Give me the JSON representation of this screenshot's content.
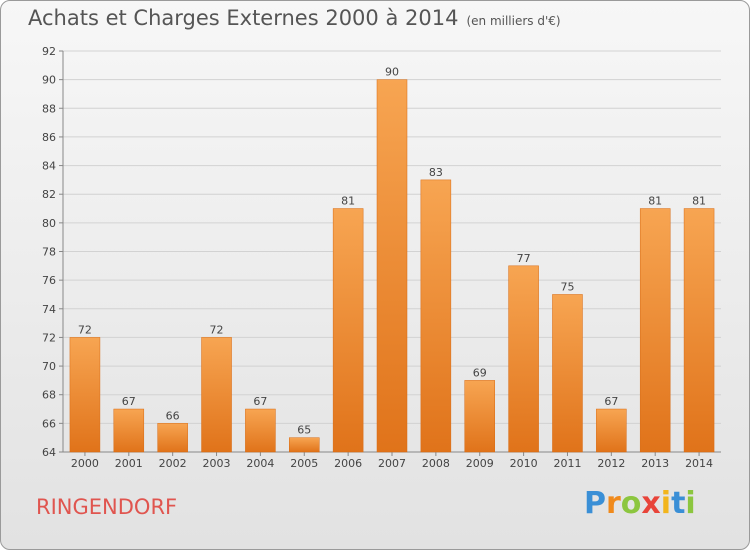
{
  "chart_data": {
    "type": "bar",
    "title": "Achats et Charges Externes 2000 à 2014",
    "subtitle": "(en milliers d'€)",
    "categories": [
      "2000",
      "2001",
      "2002",
      "2003",
      "2004",
      "2005",
      "2006",
      "2007",
      "2008",
      "2009",
      "2010",
      "2011",
      "2012",
      "2013",
      "2014"
    ],
    "values": [
      72,
      67,
      66,
      72,
      67,
      65,
      81,
      90,
      83,
      69,
      77,
      75,
      67,
      81,
      81
    ],
    "ylim": [
      64,
      92
    ],
    "yticks": [
      64,
      66,
      68,
      70,
      72,
      74,
      76,
      78,
      80,
      82,
      84,
      86,
      88,
      90,
      92
    ],
    "grid": true,
    "bar_color": "#f0923a"
  },
  "footer": {
    "commune": "RINGENDORF",
    "logo_letters": [
      {
        "ch": "P",
        "color": "#3a8fd6"
      },
      {
        "ch": "r",
        "color": "#f08a1c"
      },
      {
        "ch": "o",
        "color": "#8cc63f"
      },
      {
        "ch": "x",
        "color": "#e8443a"
      },
      {
        "ch": "i",
        "color": "#f2b51c"
      },
      {
        "ch": "t",
        "color": "#3a8fd6"
      },
      {
        "ch": "i",
        "color": "#8cc63f"
      }
    ]
  }
}
